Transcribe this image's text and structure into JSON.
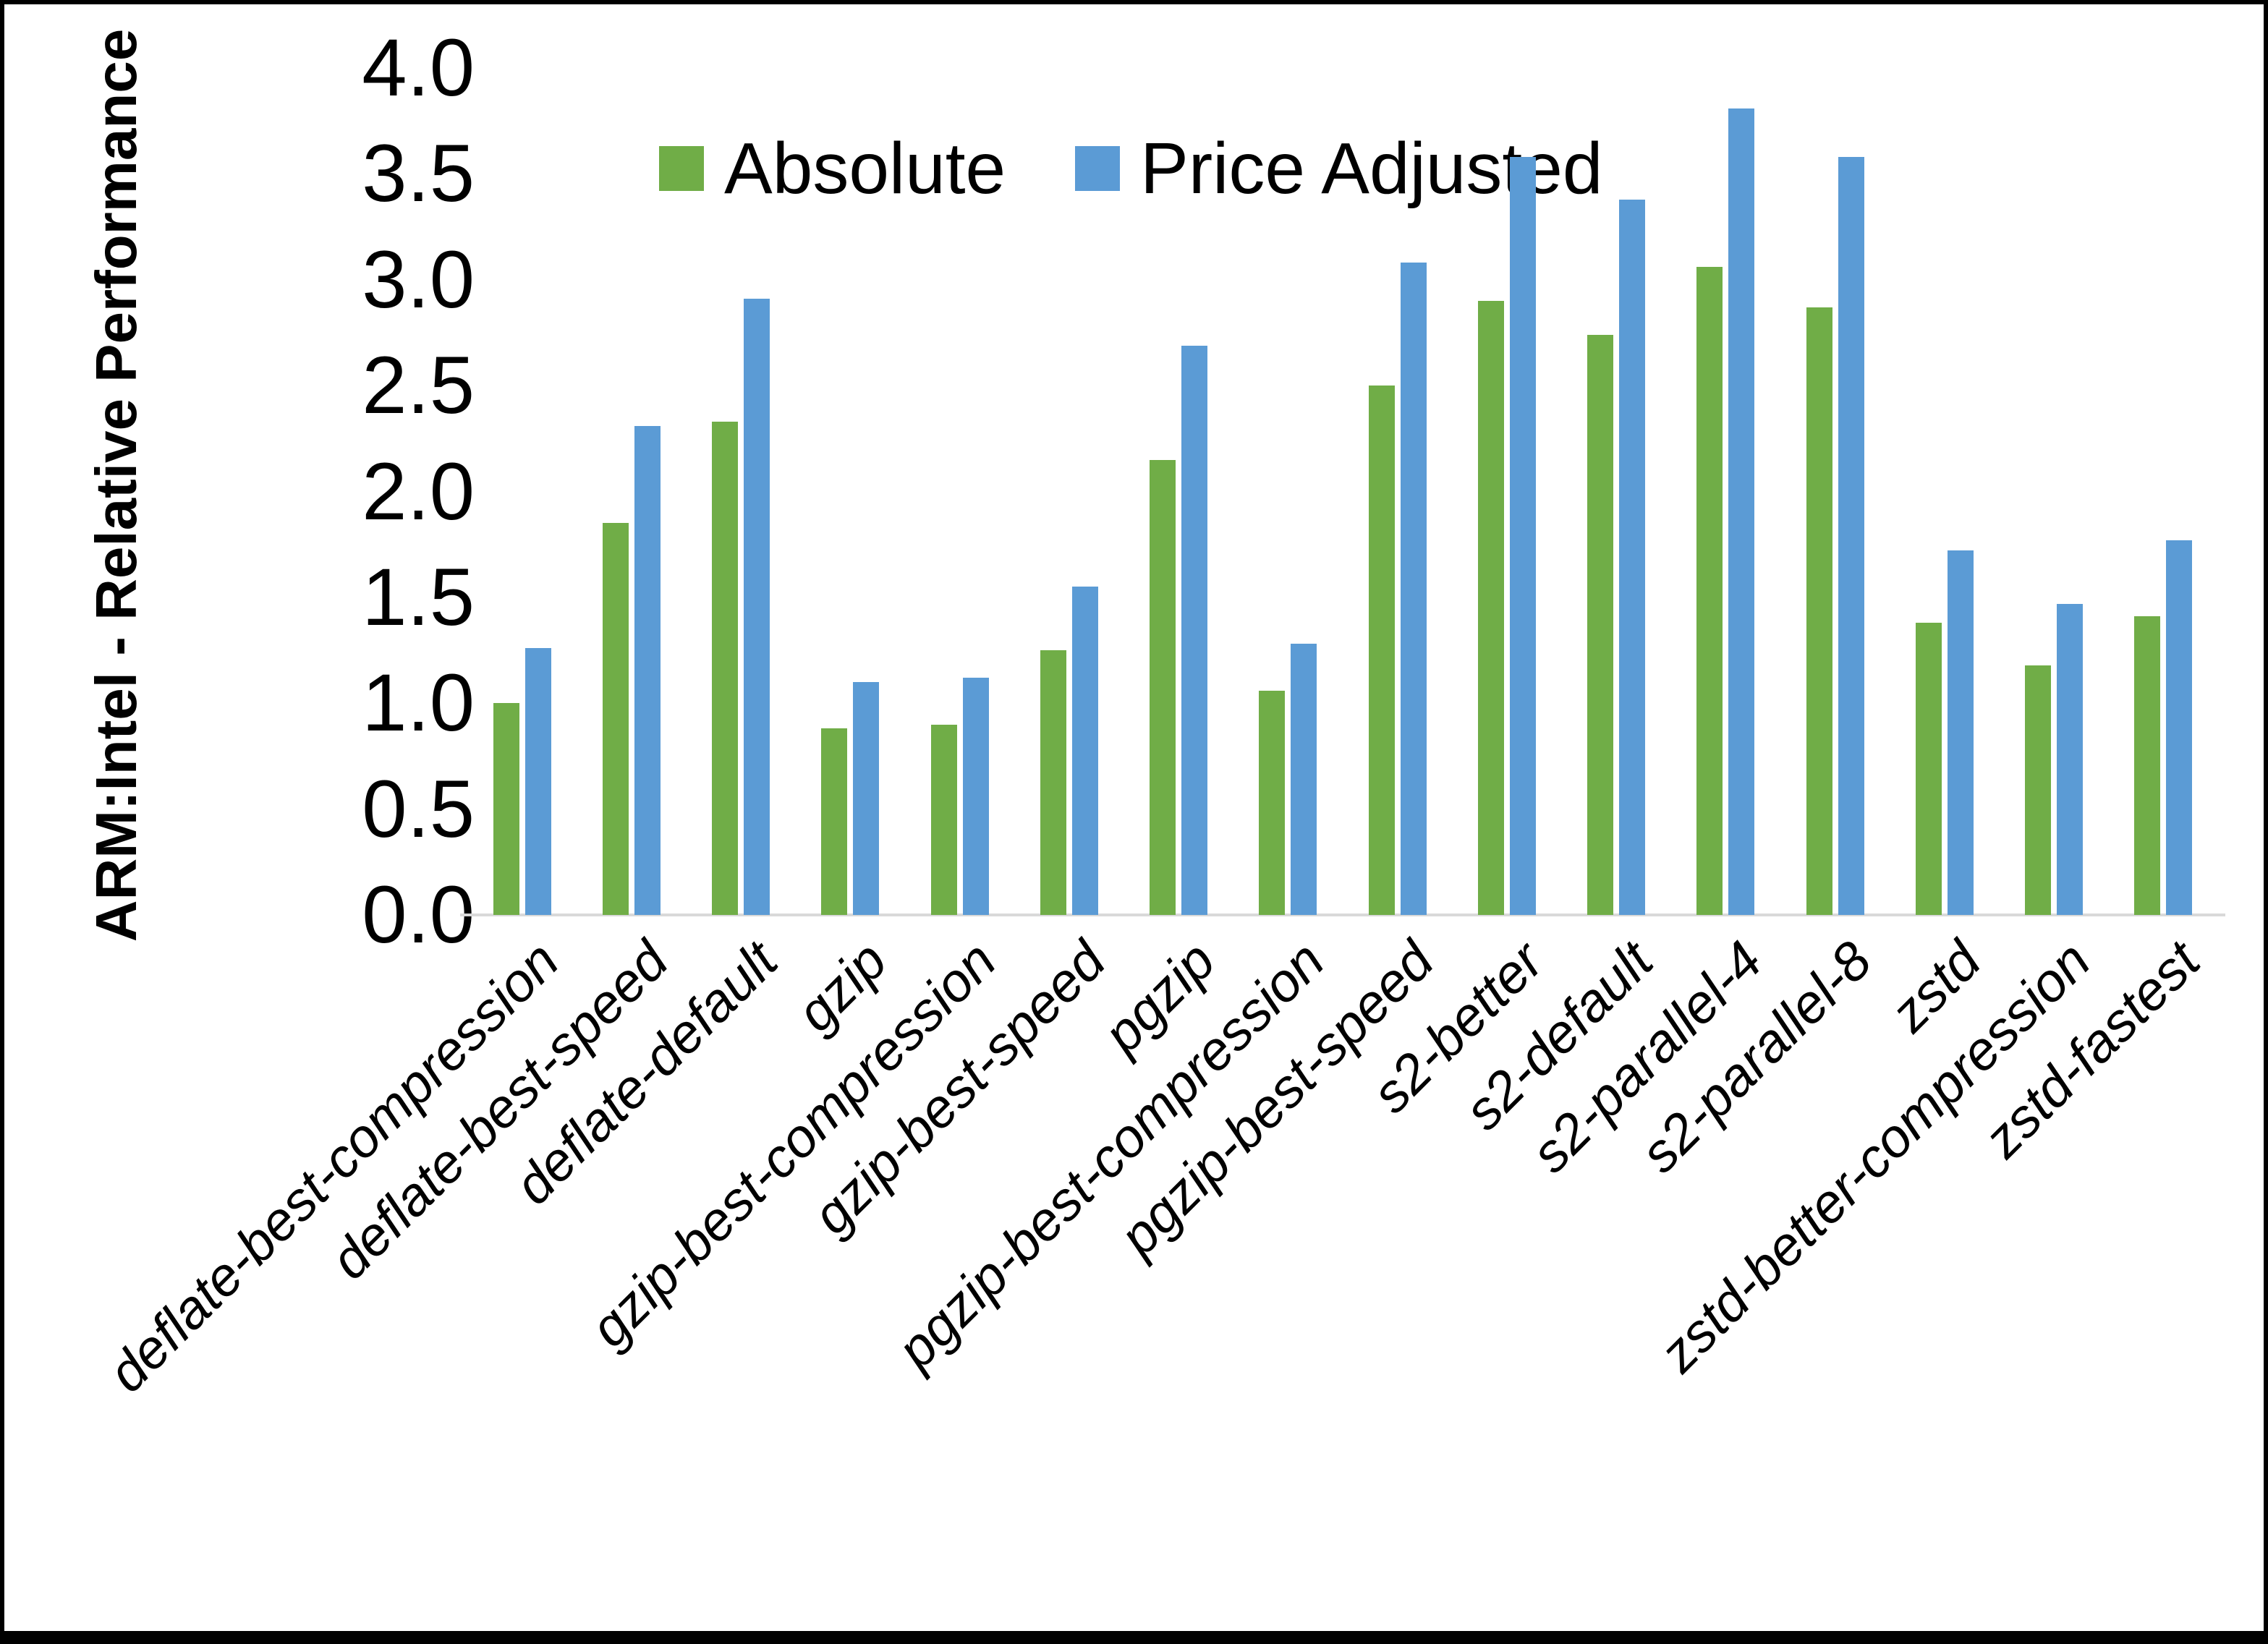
{
  "chart_data": {
    "type": "bar",
    "title": "",
    "xlabel": "",
    "ylabel": "ARM:Intel - Relative Performance",
    "ylim": [
      0.0,
      4.0
    ],
    "ytick_step": 0.5,
    "ytick_labels": [
      "0.0",
      "0.5",
      "1.0",
      "1.5",
      "2.0",
      "2.5",
      "3.0",
      "3.5",
      "4.0"
    ],
    "grid": false,
    "legend_position": "top-center",
    "axis_line_color": "#d9d9d9",
    "categories": [
      "deflate-best-compression",
      "deflate-best-speed",
      "deflate-default",
      "gzip",
      "gzip-best-compression",
      "gzip-best-speed",
      "pgzip",
      "pgzip-best-compression",
      "pgzip-best-speed",
      "s2-better",
      "s2-default",
      "s2-parallel-4",
      "s2-parallel-8",
      "zstd",
      "zstd-better-compression",
      "zstd-fastest"
    ],
    "series": [
      {
        "name": "Absolute",
        "color": "#70AD47",
        "values": [
          1.0,
          1.85,
          2.33,
          0.88,
          0.9,
          1.25,
          2.15,
          1.06,
          2.5,
          2.9,
          2.74,
          3.06,
          2.87,
          1.38,
          1.18,
          1.41
        ]
      },
      {
        "name": "Price Adjusted",
        "color": "#5B9BD5",
        "values": [
          1.26,
          2.31,
          2.91,
          1.1,
          1.12,
          1.55,
          2.69,
          1.28,
          3.08,
          3.58,
          3.38,
          3.81,
          3.58,
          1.72,
          1.47,
          1.77
        ]
      }
    ]
  }
}
